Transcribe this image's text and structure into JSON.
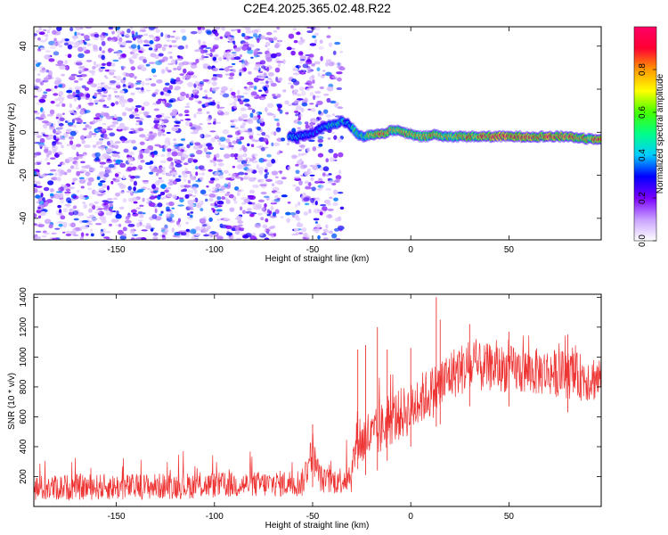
{
  "title": "C2E4.2025.365.02.48.R22",
  "chart_data": [
    {
      "type": "heatmap",
      "xlabel": "Height of straight line (km)",
      "ylabel": "Frequency (Hz)",
      "xlim": [
        -192,
        97
      ],
      "ylim": [
        -50,
        49
      ],
      "xticks": [
        -150,
        -100,
        -50,
        0,
        50
      ],
      "yticks": [
        -40,
        -20,
        0,
        20,
        40
      ],
      "colorbar": {
        "label": "Normalized spectral amplitude",
        "range": [
          0.0,
          1.0
        ],
        "ticks": [
          0.0,
          0.2,
          0.4,
          0.6,
          0.8
        ],
        "colors": [
          "#ffffff",
          "#c8a0ff",
          "#7a00ff",
          "#0000ff",
          "#00ccff",
          "#00ff88",
          "#44ff00",
          "#ffff00",
          "#ff9900",
          "#ff0033",
          "#ff0066"
        ]
      },
      "noise_region": {
        "x": [
          -192,
          -35
        ],
        "y": [
          -50,
          49
        ]
      },
      "ridge": {
        "x": [
          -62,
          -58,
          -54,
          -50,
          -46,
          -42,
          -38,
          -35,
          -32,
          -30,
          -27,
          -24,
          -20,
          -16,
          -12,
          -8,
          -4,
          0,
          4,
          8,
          12,
          16,
          20,
          30,
          40,
          50,
          60,
          70,
          80,
          90,
          97
        ],
        "y": [
          -2,
          -2,
          -1,
          -1,
          2,
          3,
          4,
          5,
          4,
          2,
          -1,
          -2,
          -1,
          -1,
          0,
          1,
          0,
          -1,
          -2,
          -2,
          -1,
          -2,
          -2,
          -2,
          -2,
          -2,
          -2,
          -2,
          -2,
          -3,
          -3
        ],
        "amplitude": [
          0.4,
          0.45,
          0.4,
          0.35,
          0.4,
          0.45,
          0.5,
          0.5,
          0.45,
          0.5,
          0.6,
          0.55,
          0.8,
          0.85,
          0.8,
          0.7,
          0.75,
          0.85,
          0.7,
          0.75,
          0.8,
          0.7,
          0.75,
          0.8,
          0.85,
          0.9,
          0.9,
          0.9,
          0.85,
          0.75,
          0.85
        ]
      }
    },
    {
      "type": "line",
      "xlabel": "Height of straight line (km)",
      "ylabel": "SNR (10 * v/v)",
      "xlim": [
        -192,
        97
      ],
      "ylim": [
        0,
        1420
      ],
      "xticks": [
        -150,
        -100,
        -50,
        0,
        50
      ],
      "yticks": [
        200,
        400,
        600,
        800,
        1000,
        1200,
        1400
      ],
      "series": [
        {
          "color": "#ee3333",
          "x": [
            -192,
            -170,
            -150,
            -130,
            -110,
            -90,
            -70,
            -55,
            -52,
            -50,
            -48,
            -45,
            -40,
            -35,
            -30,
            -27,
            -25,
            -22,
            -20,
            -15,
            -10,
            -5,
            0,
            5,
            10,
            15,
            20,
            25,
            30,
            40,
            50,
            60,
            70,
            80,
            90,
            97
          ],
          "y": [
            120,
            130,
            130,
            135,
            140,
            145,
            150,
            160,
            300,
            380,
            250,
            170,
            170,
            180,
            220,
            500,
            420,
            480,
            450,
            520,
            580,
            620,
            650,
            720,
            760,
            800,
            880,
            920,
            920,
            930,
            920,
            900,
            900,
            880,
            860,
            860
          ],
          "spread": [
            110,
            110,
            110,
            110,
            110,
            110,
            110,
            120,
            160,
            170,
            140,
            110,
            110,
            120,
            160,
            220,
            220,
            220,
            220,
            220,
            220,
            220,
            220,
            220,
            220,
            240,
            220,
            220,
            220,
            200,
            200,
            200,
            200,
            200,
            200,
            200
          ],
          "spikes": [
            {
              "x": -50,
              "y": 550
            },
            {
              "x": -27,
              "y": 1050
            },
            {
              "x": -23,
              "y": 1080
            },
            {
              "x": -17,
              "y": 1200
            },
            {
              "x": -12,
              "y": 1050
            },
            {
              "x": 0,
              "y": 1060
            },
            {
              "x": 13,
              "y": 1400
            },
            {
              "x": 15,
              "y": 1250
            },
            {
              "x": 30,
              "y": 1220
            },
            {
              "x": 50,
              "y": 1170
            },
            {
              "x": 80,
              "y": 1150
            }
          ]
        }
      ]
    }
  ]
}
